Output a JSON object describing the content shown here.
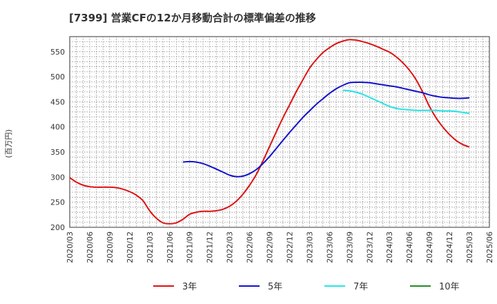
{
  "chart_data": {
    "type": "line",
    "title": "[7399]  営業CFの12か月移動合計の標準偏差の推移",
    "ylabel": "(百万円)",
    "xlabel": "",
    "ylim": [
      200,
      580
    ],
    "yticks": [
      200,
      250,
      300,
      350,
      400,
      450,
      500,
      550
    ],
    "xticks": [
      "2020/03",
      "2020/06",
      "2020/09",
      "2020/12",
      "2021/03",
      "2021/06",
      "2021/09",
      "2021/12",
      "2022/03",
      "2022/06",
      "2022/09",
      "2022/12",
      "2023/03",
      "2023/06",
      "2023/09",
      "2023/12",
      "2024/03",
      "2024/06",
      "2024/09",
      "2024/12",
      "2025/03",
      "2025/06"
    ],
    "grid": true,
    "legend_position": "bottom",
    "series": [
      {
        "name": "3年",
        "color": "#dd1111",
        "points": [
          [
            "2020/03",
            299
          ],
          [
            "2020/04",
            290
          ],
          [
            "2020/05",
            284
          ],
          [
            "2020/06",
            281
          ],
          [
            "2020/07",
            280
          ],
          [
            "2020/08",
            280
          ],
          [
            "2020/09",
            280
          ],
          [
            "2020/10",
            279
          ],
          [
            "2020/11",
            276
          ],
          [
            "2020/12",
            271
          ],
          [
            "2021/01",
            264
          ],
          [
            "2021/02",
            253
          ],
          [
            "2021/03",
            233
          ],
          [
            "2021/04",
            218
          ],
          [
            "2021/05",
            209
          ],
          [
            "2021/06",
            207
          ],
          [
            "2021/07",
            209
          ],
          [
            "2021/08",
            216
          ],
          [
            "2021/09",
            226
          ],
          [
            "2021/10",
            230
          ],
          [
            "2021/11",
            232
          ],
          [
            "2021/12",
            232
          ],
          [
            "2022/01",
            233
          ],
          [
            "2022/02",
            236
          ],
          [
            "2022/03",
            242
          ],
          [
            "2022/04",
            252
          ],
          [
            "2022/05",
            266
          ],
          [
            "2022/06",
            284
          ],
          [
            "2022/07",
            305
          ],
          [
            "2022/08",
            332
          ],
          [
            "2022/09",
            361
          ],
          [
            "2022/10",
            390
          ],
          [
            "2022/11",
            418
          ],
          [
            "2022/12",
            444
          ],
          [
            "2023/01",
            470
          ],
          [
            "2023/02",
            494
          ],
          [
            "2023/03",
            517
          ],
          [
            "2023/04",
            534
          ],
          [
            "2023/05",
            548
          ],
          [
            "2023/06",
            558
          ],
          [
            "2023/07",
            566
          ],
          [
            "2023/08",
            571
          ],
          [
            "2023/09",
            574
          ],
          [
            "2023/10",
            573
          ],
          [
            "2023/11",
            570
          ],
          [
            "2023/12",
            566
          ],
          [
            "2024/01",
            561
          ],
          [
            "2024/02",
            555
          ],
          [
            "2024/03",
            549
          ],
          [
            "2024/04",
            540
          ],
          [
            "2024/05",
            528
          ],
          [
            "2024/06",
            513
          ],
          [
            "2024/07",
            494
          ],
          [
            "2024/08",
            469
          ],
          [
            "2024/09",
            441
          ],
          [
            "2024/10",
            418
          ],
          [
            "2024/11",
            400
          ],
          [
            "2024/12",
            385
          ],
          [
            "2025/01",
            373
          ],
          [
            "2025/02",
            365
          ],
          [
            "2025/03",
            360
          ]
        ]
      },
      {
        "name": "5年",
        "color": "#1111cc",
        "points": [
          [
            "2021/08",
            330
          ],
          [
            "2021/09",
            331
          ],
          [
            "2021/10",
            330
          ],
          [
            "2021/11",
            327
          ],
          [
            "2021/12",
            322
          ],
          [
            "2022/01",
            316
          ],
          [
            "2022/02",
            310
          ],
          [
            "2022/03",
            304
          ],
          [
            "2022/04",
            301
          ],
          [
            "2022/05",
            302
          ],
          [
            "2022/06",
            307
          ],
          [
            "2022/07",
            315
          ],
          [
            "2022/08",
            327
          ],
          [
            "2022/09",
            341
          ],
          [
            "2022/10",
            357
          ],
          [
            "2022/11",
            373
          ],
          [
            "2022/12",
            389
          ],
          [
            "2023/01",
            404
          ],
          [
            "2023/02",
            419
          ],
          [
            "2023/03",
            432
          ],
          [
            "2023/04",
            445
          ],
          [
            "2023/05",
            456
          ],
          [
            "2023/06",
            467
          ],
          [
            "2023/07",
            476
          ],
          [
            "2023/08",
            483
          ],
          [
            "2023/09",
            488
          ],
          [
            "2023/10",
            489
          ],
          [
            "2023/11",
            489
          ],
          [
            "2023/12",
            488
          ],
          [
            "2024/01",
            486
          ],
          [
            "2024/02",
            484
          ],
          [
            "2024/03",
            482
          ],
          [
            "2024/04",
            480
          ],
          [
            "2024/05",
            477
          ],
          [
            "2024/06",
            474
          ],
          [
            "2024/07",
            471
          ],
          [
            "2024/08",
            468
          ],
          [
            "2024/09",
            464
          ],
          [
            "2024/10",
            461
          ],
          [
            "2024/11",
            459
          ],
          [
            "2024/12",
            458
          ],
          [
            "2025/01",
            457
          ],
          [
            "2025/02",
            457
          ],
          [
            "2025/03",
            458
          ]
        ]
      },
      {
        "name": "7年",
        "color": "#22e5e5",
        "points": [
          [
            "2023/08",
            473
          ],
          [
            "2023/09",
            472
          ],
          [
            "2023/10",
            469
          ],
          [
            "2023/11",
            465
          ],
          [
            "2023/12",
            459
          ],
          [
            "2024/01",
            453
          ],
          [
            "2024/02",
            447
          ],
          [
            "2024/03",
            441
          ],
          [
            "2024/04",
            437
          ],
          [
            "2024/05",
            435
          ],
          [
            "2024/06",
            434
          ],
          [
            "2024/07",
            433
          ],
          [
            "2024/08",
            433
          ],
          [
            "2024/09",
            433
          ],
          [
            "2024/10",
            433
          ],
          [
            "2024/11",
            432
          ],
          [
            "2024/12",
            432
          ],
          [
            "2025/01",
            431
          ],
          [
            "2025/02",
            429
          ],
          [
            "2025/03",
            427
          ]
        ]
      },
      {
        "name": "10年",
        "color": "#228b22",
        "points": []
      }
    ]
  }
}
